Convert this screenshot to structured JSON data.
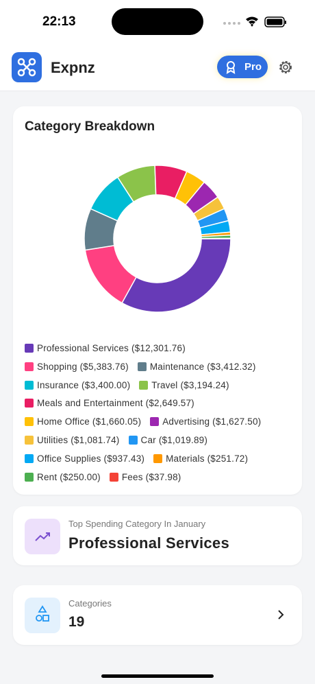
{
  "status": {
    "time": "22:13"
  },
  "header": {
    "app_name": "Expnz",
    "pro_label": "Pro"
  },
  "chart_data": {
    "type": "donut",
    "title": "Category Breakdown",
    "labels": [
      "Professional Services ($12,301.76)",
      "Shopping ($5,383.76)",
      "Maintenance ($3,412.32)",
      "Insurance ($3,400.00)",
      "Travel ($3,194.24)",
      "Meals and Entertainment ($2,649.57)",
      "Home Office ($1,660.05)",
      "Advertising ($1,627.50)",
      "Utilities ($1,081.74)",
      "Car ($1,019.89)",
      "Office Supplies ($937.43)",
      "Materials ($251.72)",
      "Rent ($250.00)",
      "Fees ($37.98)"
    ],
    "values": [
      12301.76,
      5383.76,
      3412.32,
      3400.0,
      3194.24,
      2649.57,
      1660.05,
      1627.5,
      1081.74,
      1019.89,
      937.43,
      251.72,
      250.0,
      37.98
    ],
    "colors": [
      "#673ab7",
      "#ff4081",
      "#607d8b",
      "#00bcd4",
      "#8bc34a",
      "#e91e63",
      "#ffc107",
      "#9c27b0",
      "#f6c23b",
      "#2196f3",
      "#03a9f4",
      "#ff9800",
      "#4caf50",
      "#f44336"
    ]
  },
  "top_category": {
    "label": "Top Spending Category In January",
    "value": "Professional Services"
  },
  "categories_card": {
    "label": "Categories",
    "count": 19
  }
}
